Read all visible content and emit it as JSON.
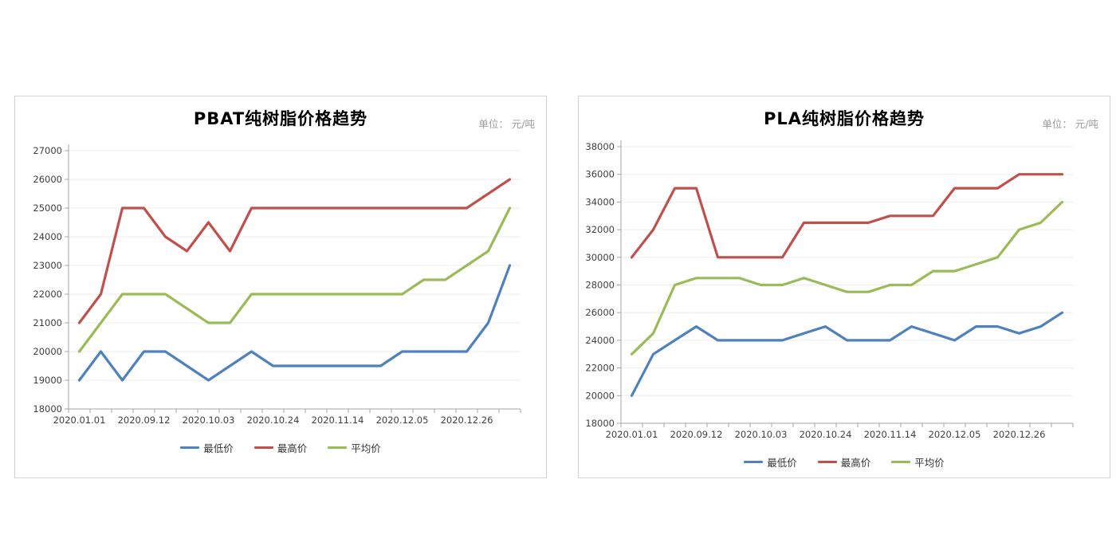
{
  "page": {
    "background": "#ffffff"
  },
  "chart_data": [
    {
      "type": "line",
      "title": "PBAT纯树脂价格趋势",
      "unit_label": "单位： 元/吨",
      "ylim": [
        18000,
        27000
      ],
      "y_step": 1000,
      "y_tick_labels": [
        "27000",
        "26000",
        "25000",
        "24000",
        "23000",
        "22000",
        "21000",
        "20000",
        "19000",
        "18000"
      ],
      "x_tick_labels": [
        "2020.01.01",
        "2020.09.12",
        "2020.10.03",
        "2020.10.24",
        "2020.11.14",
        "2020.12.05",
        "2020.12.26"
      ],
      "x_label_every": 3,
      "n_points": 21,
      "categories": [
        "2020.01.01",
        "",
        "",
        "2020.09.12",
        "",
        "",
        "2020.10.03",
        "",
        "",
        "2020.10.24",
        "",
        "",
        "2020.11.14",
        "",
        "",
        "2020.12.05",
        "",
        "",
        "2020.12.26",
        "",
        ""
      ],
      "grid": "horizontal",
      "legend_position": "bottom",
      "series": [
        {
          "name": "最低价",
          "color": "#4F81BD",
          "values": [
            19000,
            20000,
            19000,
            20000,
            20000,
            19500,
            19000,
            19500,
            20000,
            19500,
            19500,
            19500,
            19500,
            19500,
            19500,
            20000,
            20000,
            20000,
            20000,
            21000,
            23000
          ]
        },
        {
          "name": "最高价",
          "color": "#C0504D",
          "values": [
            21000,
            22000,
            25000,
            25000,
            24000,
            23500,
            24500,
            23500,
            25000,
            25000,
            25000,
            25000,
            25000,
            25000,
            25000,
            25000,
            25000,
            25000,
            25000,
            25500,
            26000
          ]
        },
        {
          "name": "平均价",
          "color": "#9BBB59",
          "values": [
            20000,
            21000,
            22000,
            22000,
            22000,
            21500,
            21000,
            21000,
            22000,
            22000,
            22000,
            22000,
            22000,
            22000,
            22000,
            22000,
            22500,
            22500,
            23000,
            23500,
            25000
          ]
        }
      ]
    },
    {
      "type": "line",
      "title": "PLA纯树脂价格趋势",
      "unit_label": "单位： 元/吨",
      "ylim": [
        18000,
        38000
      ],
      "y_step": 2000,
      "y_tick_labels": [
        "38000",
        "36000",
        "34000",
        "32000",
        "30000",
        "28000",
        "26000",
        "24000",
        "22000",
        "20000",
        "18000"
      ],
      "x_tick_labels": [
        "2020.01.01",
        "2020.09.12",
        "2020.10.03",
        "2020.10.24",
        "2020.11.14",
        "2020.12.05",
        "2020.12.26"
      ],
      "x_label_every": 3,
      "n_points": 21,
      "categories": [
        "2020.01.01",
        "",
        "",
        "2020.09.12",
        "",
        "",
        "2020.10.03",
        "",
        "",
        "2020.10.24",
        "",
        "",
        "2020.11.14",
        "",
        "",
        "2020.12.05",
        "",
        "",
        "2020.12.26",
        "",
        ""
      ],
      "grid": "horizontal",
      "legend_position": "bottom",
      "series": [
        {
          "name": "最低价",
          "color": "#4F81BD",
          "values": [
            20000,
            23000,
            24000,
            25000,
            24000,
            24000,
            24000,
            24000,
            24500,
            25000,
            24000,
            24000,
            24000,
            25000,
            24500,
            24000,
            25000,
            25000,
            24500,
            25000,
            26000
          ]
        },
        {
          "name": "最高价",
          "color": "#C0504D",
          "values": [
            30000,
            32000,
            35000,
            35000,
            30000,
            30000,
            30000,
            30000,
            32500,
            32500,
            32500,
            32500,
            33000,
            33000,
            33000,
            35000,
            35000,
            35000,
            36000,
            36000,
            36000
          ]
        },
        {
          "name": "平均价",
          "color": "#9BBB59",
          "values": [
            23000,
            24500,
            28000,
            28500,
            28500,
            28500,
            28000,
            28000,
            28500,
            28000,
            27500,
            27500,
            28000,
            28000,
            29000,
            29000,
            29500,
            30000,
            32000,
            32500,
            34000
          ]
        }
      ]
    }
  ],
  "style": {
    "gridline_color": "#ededed",
    "axis_color": "#a6a6a6",
    "tick_label_color": "#3f3f3f",
    "title_color": "#000000",
    "unit_label_color": "#9b9b9b"
  }
}
